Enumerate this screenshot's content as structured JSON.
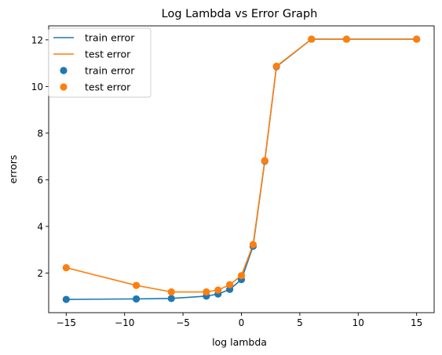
{
  "chart_data": {
    "type": "line",
    "title": "Log Lambda vs Error Graph",
    "xlabel": "log lambda",
    "ylabel": "errors",
    "xlim": [
      -16.5,
      16.5
    ],
    "ylim": [
      0.3,
      12.6
    ],
    "xticks": [
      -15,
      -10,
      -5,
      0,
      5,
      10,
      15
    ],
    "xtick_labels": [
      "−15",
      "−10",
      "−5",
      "0",
      "5",
      "10",
      "15"
    ],
    "yticks": [
      2,
      4,
      6,
      8,
      10,
      12
    ],
    "ytick_labels": [
      "2",
      "4",
      "6",
      "8",
      "10",
      "12"
    ],
    "grid": false,
    "legend_position": "top-left",
    "x": [
      -15,
      -9,
      -6,
      -3,
      -2,
      -1,
      0,
      1,
      2,
      3,
      6,
      9,
      15
    ],
    "series": [
      {
        "name": "train error",
        "color": "#1f77b4",
        "values": [
          0.87,
          0.89,
          0.91,
          1.01,
          1.1,
          1.3,
          1.72,
          3.15,
          6.8,
          10.85,
          12.03,
          12.03,
          12.03
        ]
      },
      {
        "name": "test error",
        "color": "#ff7f0e",
        "values": [
          2.23,
          1.47,
          1.19,
          1.19,
          1.27,
          1.5,
          1.89,
          3.22,
          6.82,
          10.87,
          12.03,
          12.03,
          12.03
        ]
      }
    ],
    "legend_entries": [
      {
        "label": "train error",
        "kind": "line",
        "color": "#1f77b4"
      },
      {
        "label": "test error",
        "kind": "line",
        "color": "#ff7f0e"
      },
      {
        "label": "train error",
        "kind": "scatter",
        "color": "#1f77b4"
      },
      {
        "label": "test error",
        "kind": "scatter",
        "color": "#ff7f0e"
      }
    ]
  }
}
